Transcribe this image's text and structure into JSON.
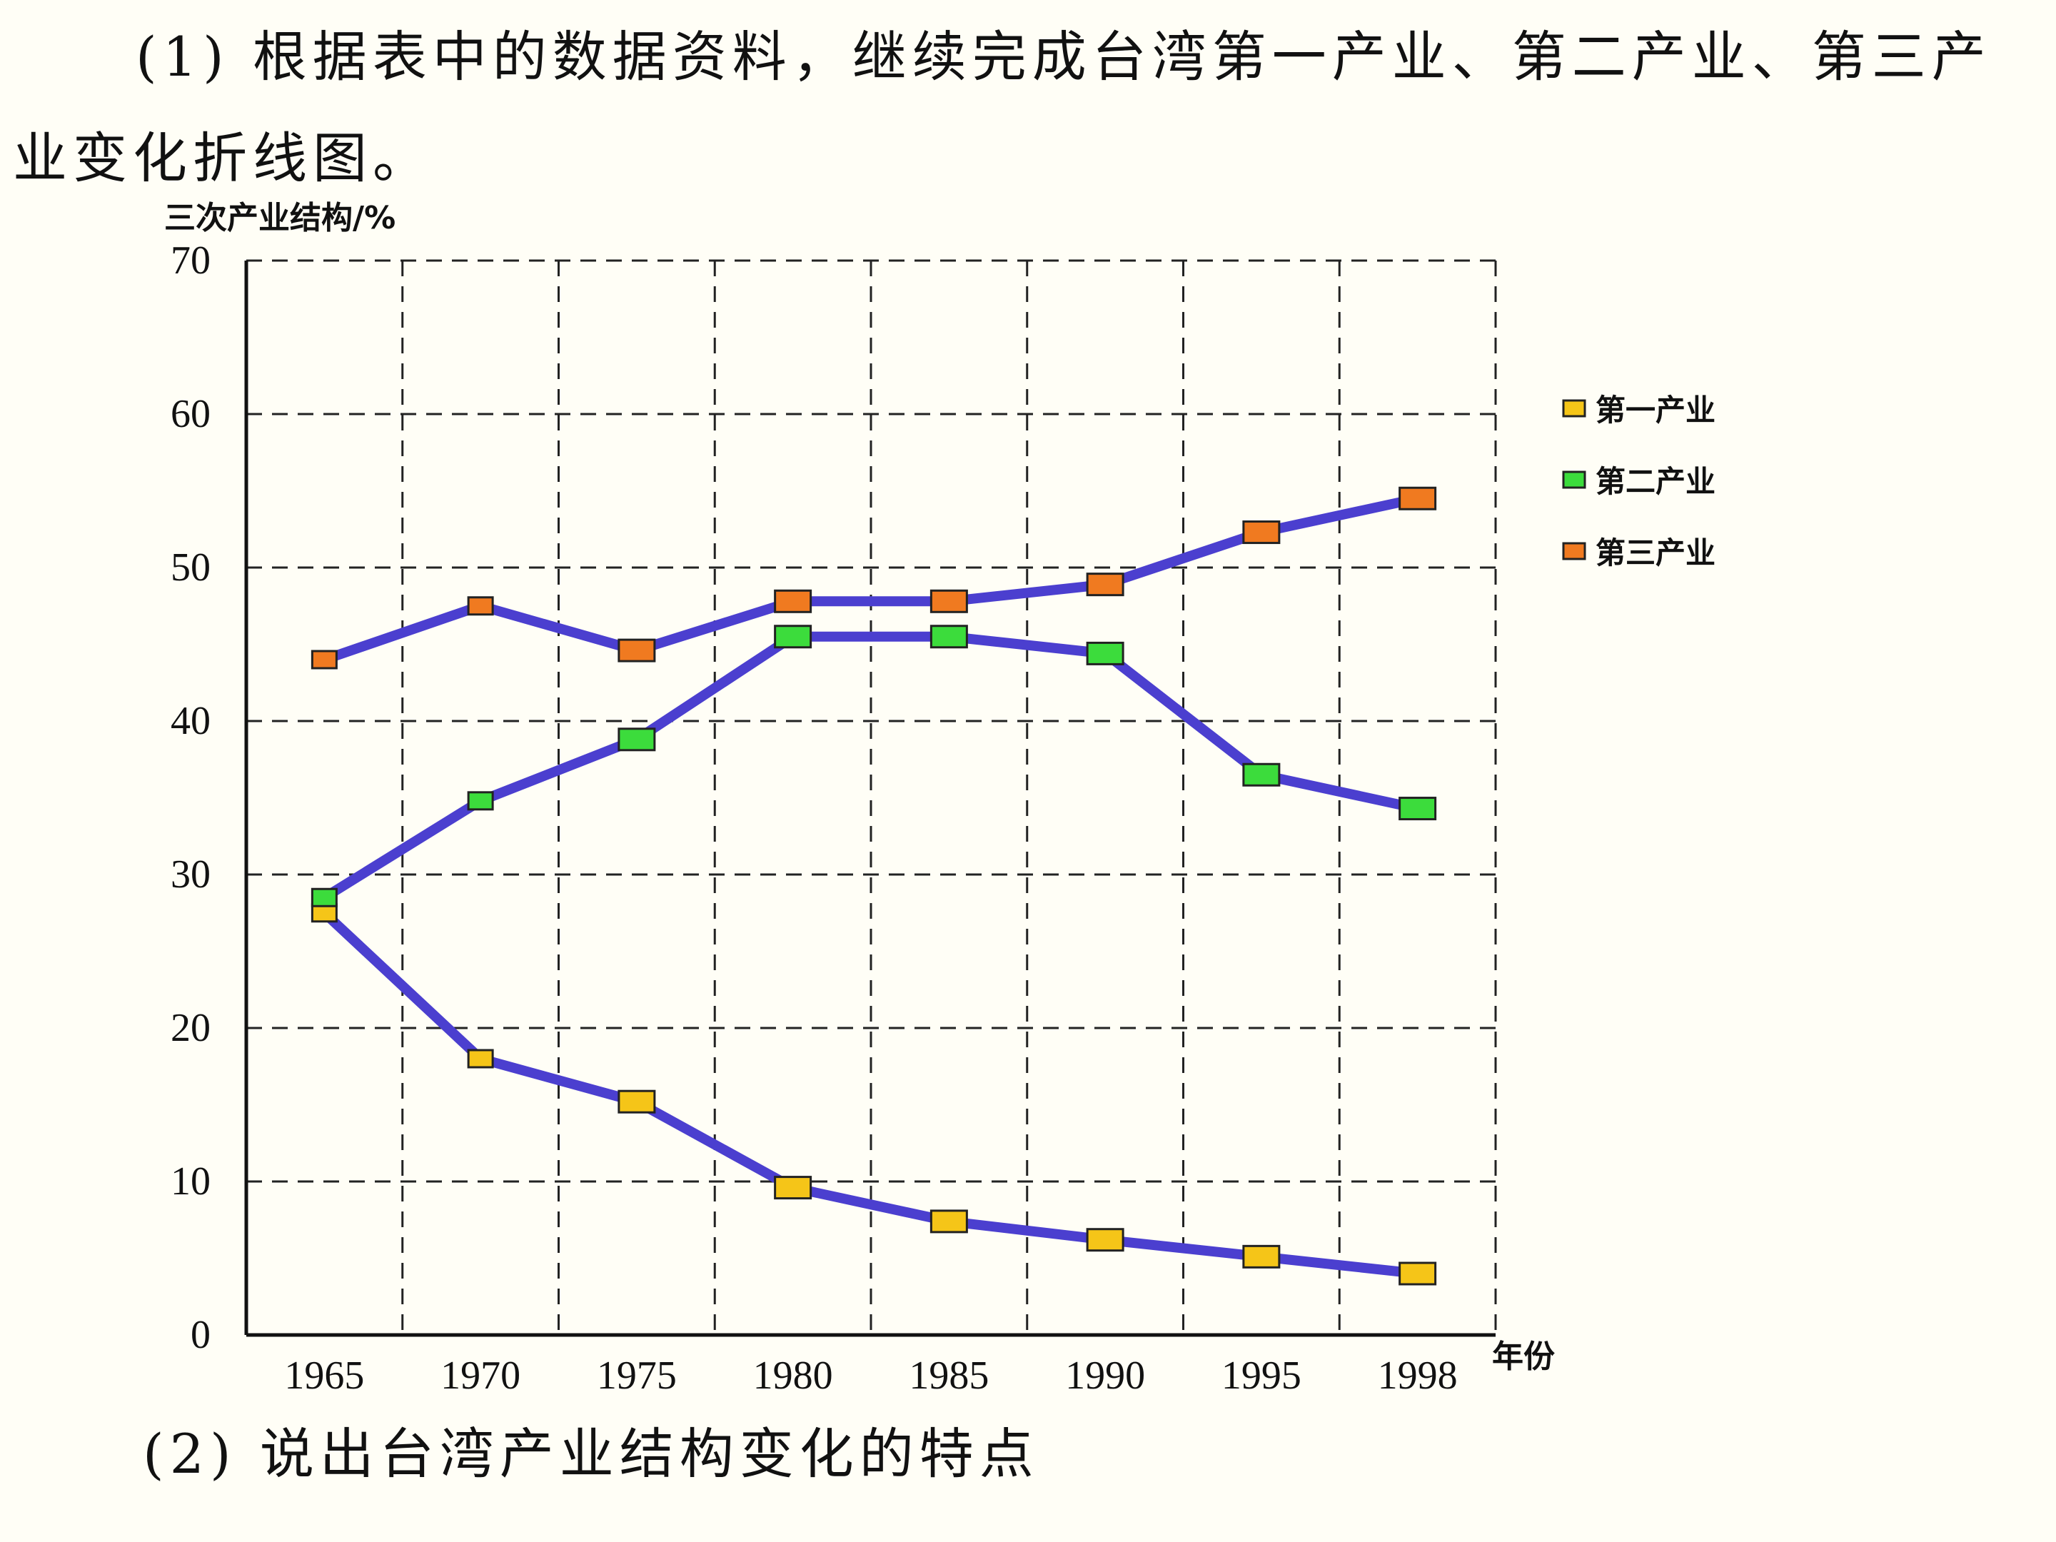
{
  "question": {
    "q1_line1": "(1) 根据表中的数据资料，继续完成台湾第一产业、第二产业、第三产",
    "q1_line2": "业变化折线图。",
    "q2": "(2) 说出台湾产业结构变化的特点"
  },
  "chart_data": {
    "type": "line",
    "ylabel": "三次产业结构/%",
    "xlabel": "年份",
    "x": [
      "1965",
      "1970",
      "1975",
      "1980",
      "1985",
      "1990",
      "1995",
      "1998"
    ],
    "ylim": [
      0,
      70
    ],
    "yticks": [
      0,
      10,
      20,
      30,
      40,
      50,
      60,
      70
    ],
    "grid": true,
    "legend_position": "right",
    "series": [
      {
        "name": "第一产业",
        "values": [
          27.5,
          18.0,
          15.2,
          9.6,
          7.4,
          6.2,
          5.1,
          4.0
        ],
        "marker_color": "#f5c518"
      },
      {
        "name": "第二产业",
        "values": [
          28.5,
          34.8,
          38.8,
          45.5,
          45.5,
          44.4,
          36.5,
          34.3
        ],
        "marker_color": "#3cdc3c"
      },
      {
        "name": "第三产业",
        "values": [
          44.0,
          47.5,
          44.6,
          47.8,
          47.8,
          48.9,
          52.3,
          54.5
        ],
        "marker_color": "#f07a20"
      }
    ],
    "line_color": "#4b3fcf",
    "grid_color": "#222222"
  }
}
